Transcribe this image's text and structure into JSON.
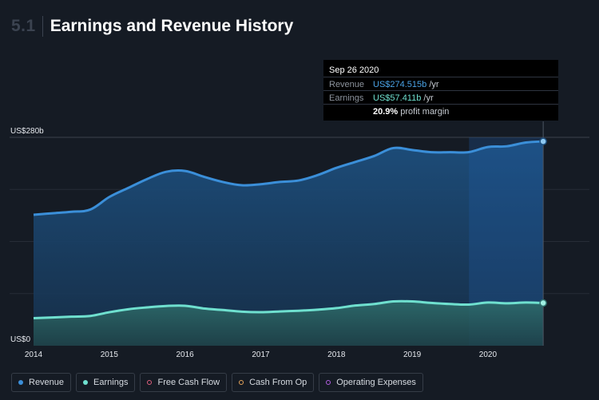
{
  "header": {
    "section_number": "5.1",
    "title": "Earnings and Revenue History"
  },
  "tooltip": {
    "date": "Sep 26 2020",
    "revenue_label": "Revenue",
    "revenue_value": "US$274.515b",
    "earnings_label": "Earnings",
    "earnings_value": "US$57.411b",
    "per_year": "/yr",
    "margin_value": "20.9%",
    "margin_label": "profit margin"
  },
  "legend": [
    {
      "label": "Revenue",
      "color": "#3b8fd9",
      "filled": true
    },
    {
      "label": "Earnings",
      "color": "#6fe0cf",
      "filled": true
    },
    {
      "label": "Free Cash Flow",
      "color": "#e0607e",
      "filled": false
    },
    {
      "label": "Cash From Op",
      "color": "#e5a35a",
      "filled": false
    },
    {
      "label": "Operating Expenses",
      "color": "#b05ee0",
      "filled": false
    }
  ],
  "chart_data": {
    "type": "area",
    "title": "Earnings and Revenue History",
    "ylim": [
      0,
      280
    ],
    "y_ticks": [
      {
        "value": 280,
        "label": "US$280b"
      },
      {
        "value": 0,
        "label": "US$0"
      }
    ],
    "xlim": [
      2014.0,
      2020.95
    ],
    "x_ticks": [
      "2014",
      "2015",
      "2016",
      "2017",
      "2018",
      "2019",
      "2020"
    ],
    "grid": true,
    "highlight_from": 2019.75,
    "series": [
      {
        "name": "Revenue",
        "color": "#3b8fd9",
        "x": [
          2014.0,
          2014.25,
          2014.5,
          2014.75,
          2015.0,
          2015.25,
          2015.5,
          2015.75,
          2016.0,
          2016.25,
          2016.5,
          2016.75,
          2017.0,
          2017.25,
          2017.5,
          2017.75,
          2018.0,
          2018.25,
          2018.5,
          2018.75,
          2019.0,
          2019.25,
          2019.5,
          2019.75,
          2020.0,
          2020.25,
          2020.5,
          2020.73
        ],
        "y": [
          176.0,
          178.0,
          180.0,
          183.0,
          199.8,
          212.0,
          224.0,
          233.7,
          234.8,
          227.0,
          220.0,
          215.6,
          217.0,
          220.0,
          222.0,
          229.2,
          239.0,
          247.0,
          255.0,
          265.6,
          263.0,
          260.0,
          260.0,
          260.2,
          267.0,
          268.0,
          273.0,
          274.5
        ]
      },
      {
        "name": "Earnings",
        "color": "#6fe0cf",
        "x": [
          2014.0,
          2014.25,
          2014.5,
          2014.75,
          2015.0,
          2015.25,
          2015.5,
          2015.75,
          2016.0,
          2016.25,
          2016.5,
          2016.75,
          2017.0,
          2017.25,
          2017.5,
          2017.75,
          2018.0,
          2018.25,
          2018.5,
          2018.75,
          2019.0,
          2019.25,
          2019.5,
          2019.75,
          2020.0,
          2020.25,
          2020.5,
          2020.73
        ],
        "y": [
          37.0,
          38.0,
          39.0,
          40.0,
          45.0,
          49.0,
          51.5,
          53.4,
          53.7,
          50.0,
          48.0,
          45.7,
          45.0,
          46.0,
          47.0,
          48.4,
          50.5,
          54.0,
          56.0,
          59.5,
          59.5,
          57.5,
          56.0,
          55.3,
          58.0,
          57.0,
          58.0,
          57.4
        ]
      }
    ]
  }
}
